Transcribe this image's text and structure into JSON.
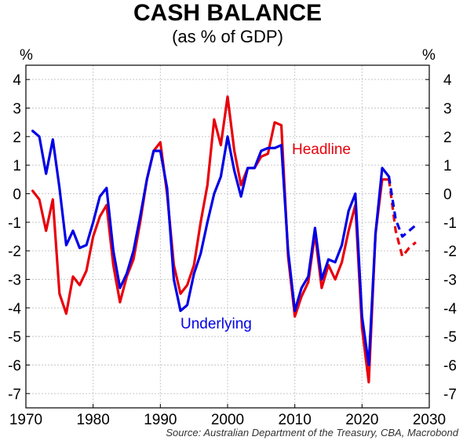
{
  "header": {
    "title": "CASH BALANCE",
    "subtitle": "(as % of GDP)",
    "unit_left": "%",
    "unit_right": "%"
  },
  "source": "Source: Australian Department of the Treasury, CBA, Macrobond",
  "colors": {
    "headline": "#e8000b",
    "underlying": "#0000e6",
    "grid": "#c8c8c8"
  },
  "chart_data": {
    "type": "line",
    "title": "CASH BALANCE",
    "subtitle": "(as % of GDP)",
    "ylabel": "%",
    "xlim": [
      1970,
      2030
    ],
    "ylim": [
      -7.5,
      4.5
    ],
    "xticks": [
      1970,
      1980,
      1990,
      2000,
      2010,
      2020,
      2030
    ],
    "yticks": [
      4,
      3,
      2,
      1,
      0,
      -1,
      -2,
      -3,
      -4,
      -5,
      -6,
      -7
    ],
    "grid": true,
    "annotations": [
      {
        "text": "Headline",
        "series": "Headline"
      },
      {
        "text": "Underlying",
        "series": "Underlying"
      }
    ],
    "series": [
      {
        "name": "Headline",
        "color": "#e8000b",
        "x": [
          1971,
          1972,
          1973,
          1974,
          1975,
          1976,
          1977,
          1978,
          1979,
          1980,
          1981,
          1982,
          1983,
          1984,
          1985,
          1986,
          1987,
          1988,
          1989,
          1990,
          1991,
          1992,
          1993,
          1994,
          1995,
          1996,
          1997,
          1998,
          1999,
          2000,
          2001,
          2002,
          2003,
          2004,
          2005,
          2006,
          2007,
          2008,
          2009,
          2010,
          2011,
          2012,
          2013,
          2014,
          2015,
          2016,
          2017,
          2018,
          2019,
          2020,
          2021,
          2022,
          2023,
          2024
        ],
        "values": [
          0.1,
          -0.2,
          -1.3,
          -0.2,
          -3.5,
          -4.2,
          -2.9,
          -3.2,
          -2.7,
          -1.5,
          -0.8,
          -0.4,
          -2.5,
          -3.8,
          -2.9,
          -2.3,
          -1.0,
          0.5,
          1.5,
          1.8,
          0.0,
          -2.5,
          -3.5,
          -3.2,
          -2.5,
          -1.0,
          0.3,
          2.6,
          1.7,
          3.4,
          1.5,
          0.3,
          0.9,
          0.9,
          1.3,
          1.4,
          2.5,
          2.4,
          -2.2,
          -4.3,
          -3.6,
          -3.1,
          -1.4,
          -3.3,
          -2.5,
          -3.0,
          -2.4,
          -1.3,
          -0.4,
          -4.7,
          -6.6,
          -1.4,
          0.5,
          0.5
        ],
        "forecast_x": [
          2024,
          2025,
          2026,
          2027,
          2028
        ],
        "forecast_values": [
          0.5,
          -1.3,
          -2.2,
          -1.9,
          -1.7
        ]
      },
      {
        "name": "Underlying",
        "color": "#0000e6",
        "x": [
          1971,
          1972,
          1973,
          1974,
          1975,
          1976,
          1977,
          1978,
          1979,
          1980,
          1981,
          1982,
          1983,
          1984,
          1985,
          1986,
          1987,
          1988,
          1989,
          1990,
          1991,
          1992,
          1993,
          1994,
          1995,
          1996,
          1997,
          1998,
          1999,
          2000,
          2001,
          2002,
          2003,
          2004,
          2005,
          2006,
          2007,
          2008,
          2009,
          2010,
          2011,
          2012,
          2013,
          2014,
          2015,
          2016,
          2017,
          2018,
          2019,
          2020,
          2021,
          2022,
          2023,
          2024
        ],
        "values": [
          2.2,
          2.0,
          0.7,
          1.9,
          0.2,
          -1.8,
          -1.3,
          -1.9,
          -1.8,
          -1.0,
          -0.1,
          0.2,
          -2.0,
          -3.3,
          -2.8,
          -2.0,
          -0.8,
          0.5,
          1.5,
          1.5,
          0.2,
          -3.0,
          -4.1,
          -3.9,
          -2.8,
          -2.1,
          -1.0,
          0.0,
          0.6,
          2.0,
          0.8,
          -0.1,
          0.9,
          0.9,
          1.5,
          1.6,
          1.6,
          1.7,
          -2.0,
          -4.1,
          -3.3,
          -2.9,
          -1.2,
          -3.0,
          -2.3,
          -2.4,
          -1.8,
          -0.6,
          0.0,
          -4.3,
          -6.0,
          -1.4,
          0.9,
          0.6
        ],
        "forecast_x": [
          2024,
          2025,
          2026,
          2027,
          2028
        ],
        "forecast_values": [
          0.6,
          -0.9,
          -1.5,
          -1.3,
          -1.1
        ]
      }
    ]
  }
}
